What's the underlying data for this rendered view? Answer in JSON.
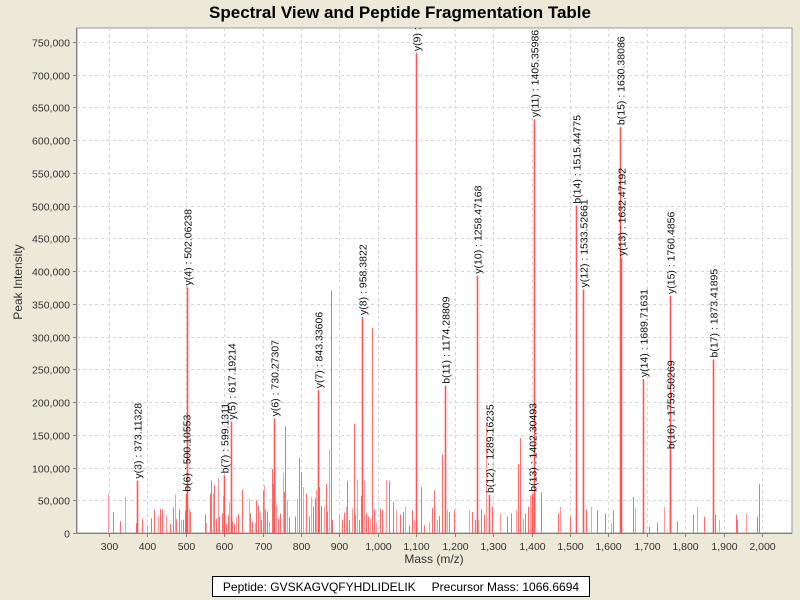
{
  "chart_data": {
    "type": "bar",
    "title": "Spectral View and Peptide Fragmentation Table",
    "xlabel": "Mass (m/z)",
    "ylabel": "Peak Intensity",
    "xlim": [
      217,
      2078
    ],
    "ylim": [
      0,
      772000
    ],
    "grid": true,
    "x_ticks": [
      300,
      400,
      500,
      600,
      700,
      800,
      900,
      1000,
      1100,
      1200,
      1300,
      1400,
      1500,
      1600,
      1700,
      1800,
      1900,
      2000
    ],
    "x_tick_labels": [
      "300",
      "400",
      "500",
      "600",
      "700",
      "800",
      "900",
      "1,000",
      "1,100",
      "1,200",
      "1,300",
      "1,400",
      "1,500",
      "1,600",
      "1,700",
      "1,800",
      "1,900",
      "2,000"
    ],
    "y_ticks": [
      0,
      50000,
      100000,
      150000,
      200000,
      250000,
      300000,
      350000,
      400000,
      450000,
      500000,
      550000,
      600000,
      650000,
      700000,
      750000
    ],
    "y_tick_labels": [
      "0",
      "50,000",
      "100,000",
      "150,000",
      "200,000",
      "250,000",
      "300,000",
      "350,000",
      "400,000",
      "450,000",
      "500,000",
      "550,000",
      "600,000",
      "650,000",
      "700,000",
      "750,000"
    ],
    "series_color": "#ff5555",
    "annotated_peaks": [
      {
        "mz": 373.11328,
        "intensity": 80000,
        "label": "y(3) : 373.11328"
      },
      {
        "mz": 500.10553,
        "intensity": 60000,
        "label": "b(6) : 500.10553"
      },
      {
        "mz": 502.06238,
        "intensity": 375000,
        "label": "y(4) : 502.06238"
      },
      {
        "mz": 599.1311,
        "intensity": 88000,
        "label": "b(7) : 599.1311"
      },
      {
        "mz": 617.19214,
        "intensity": 170000,
        "label": "y(5) : 617.19214"
      },
      {
        "mz": 730.27307,
        "intensity": 175000,
        "label": "y(6) : 730.27307"
      },
      {
        "mz": 843.33606,
        "intensity": 218000,
        "label": "y(7) : 843.33606"
      },
      {
        "mz": 958.3822,
        "intensity": 330000,
        "label": "y(8) : 958.3822"
      },
      {
        "mz": 1098.4,
        "intensity": 733000,
        "label": "y(9) :"
      },
      {
        "mz": 1174.28809,
        "intensity": 225000,
        "label": "b(11) : 1174.28809"
      },
      {
        "mz": 1258.47168,
        "intensity": 393000,
        "label": "y(10) : 1258.47168"
      },
      {
        "mz": 1289.16235,
        "intensity": 58000,
        "label": "b(12) : 1289.16235"
      },
      {
        "mz": 1402.30493,
        "intensity": 60000,
        "label": "b(13) : 1402.30493"
      },
      {
        "mz": 1405.35986,
        "intensity": 632000,
        "label": "y(11) : 1405.35986"
      },
      {
        "mz": 1515.44775,
        "intensity": 500000,
        "label": "b(14) : 1515.44775"
      },
      {
        "mz": 1533.52661,
        "intensity": 372000,
        "label": "y(12) : 1533.52661"
      },
      {
        "mz": 1630.38086,
        "intensity": 620000,
        "label": "b(15) : 1630.38086"
      },
      {
        "mz": 1632.47192,
        "intensity": 420000,
        "label": "y(13) : 1632.47192"
      },
      {
        "mz": 1689.71631,
        "intensity": 235000,
        "label": "y(14) : 1689.71631"
      },
      {
        "mz": 1759.50269,
        "intensity": 125000,
        "label": "b(16) : 1759.50269"
      },
      {
        "mz": 1760.4856,
        "intensity": 362000,
        "label": "y(15) : 1760.4856"
      },
      {
        "mz": 1873.41895,
        "intensity": 265000,
        "label": "b(17) : 1873.41895"
      }
    ],
    "other_peaks": [
      [
        298,
        60000
      ],
      [
        310,
        32000
      ],
      [
        328,
        18000
      ],
      [
        341,
        55000
      ],
      [
        370,
        15000
      ],
      [
        386,
        21000
      ],
      [
        398,
        12000
      ],
      [
        410,
        22000
      ],
      [
        418,
        36000
      ],
      [
        428,
        26000
      ],
      [
        432,
        37000
      ],
      [
        438,
        36000
      ],
      [
        448,
        27000
      ],
      [
        460,
        14000
      ],
      [
        467,
        39000
      ],
      [
        471,
        59000
      ],
      [
        475,
        21000
      ],
      [
        482,
        36000
      ],
      [
        488,
        20000
      ],
      [
        492,
        20000
      ],
      [
        498,
        34000
      ],
      [
        508,
        37000
      ],
      [
        512,
        32000
      ],
      [
        549,
        28000
      ],
      [
        552,
        15000
      ],
      [
        564,
        60000
      ],
      [
        566,
        80000
      ],
      [
        571,
        61000
      ],
      [
        574,
        73000
      ],
      [
        578,
        22000
      ],
      [
        583,
        84000
      ],
      [
        586,
        25000
      ],
      [
        594,
        30000
      ],
      [
        597,
        57000
      ],
      [
        604,
        14000
      ],
      [
        610,
        27000
      ],
      [
        613,
        47000
      ],
      [
        620,
        18000
      ],
      [
        625,
        14000
      ],
      [
        631,
        24000
      ],
      [
        637,
        29000
      ],
      [
        646,
        66000
      ],
      [
        665,
        52000
      ],
      [
        668,
        30000
      ],
      [
        672,
        17000
      ],
      [
        680,
        15000
      ],
      [
        684,
        50000
      ],
      [
        688,
        42000
      ],
      [
        693,
        31000
      ],
      [
        697,
        20000
      ],
      [
        700,
        65000
      ],
      [
        703,
        73000
      ],
      [
        706,
        36000
      ],
      [
        712,
        33000
      ],
      [
        718,
        18000
      ],
      [
        724,
        98000
      ],
      [
        728,
        75000
      ],
      [
        735,
        43000
      ],
      [
        741,
        22000
      ],
      [
        746,
        30000
      ],
      [
        752,
        92000
      ],
      [
        755,
        63000
      ],
      [
        758,
        163000
      ],
      [
        764,
        50000
      ],
      [
        770,
        24000
      ],
      [
        784,
        25000
      ],
      [
        790,
        52000
      ],
      [
        795,
        115000
      ],
      [
        801,
        93000
      ],
      [
        804,
        70000
      ],
      [
        813,
        60000
      ],
      [
        820,
        25000
      ],
      [
        826,
        55000
      ],
      [
        832,
        40000
      ],
      [
        836,
        53000
      ],
      [
        840,
        66000
      ],
      [
        848,
        70000
      ],
      [
        852,
        41000
      ],
      [
        860,
        40000
      ],
      [
        864,
        75000
      ],
      [
        868,
        32000
      ],
      [
        872,
        128000
      ],
      [
        877,
        370000
      ],
      [
        882,
        20000
      ],
      [
        900,
        28000
      ],
      [
        907,
        20000
      ],
      [
        913,
        31000
      ],
      [
        917,
        40000
      ],
      [
        920,
        80000
      ],
      [
        925,
        20000
      ],
      [
        932,
        37000
      ],
      [
        937,
        167000
      ],
      [
        941,
        28000
      ],
      [
        946,
        82000
      ],
      [
        951,
        20000
      ],
      [
        956,
        57000
      ],
      [
        963,
        80000
      ],
      [
        968,
        30000
      ],
      [
        975,
        25000
      ],
      [
        980,
        22000
      ],
      [
        986,
        313000
      ],
      [
        990,
        36000
      ],
      [
        996,
        15000
      ],
      [
        1005,
        37000
      ],
      [
        1012,
        35000
      ],
      [
        1020,
        81000
      ],
      [
        1030,
        80000
      ],
      [
        1040,
        47000
      ],
      [
        1048,
        36000
      ],
      [
        1058,
        28000
      ],
      [
        1066,
        32000
      ],
      [
        1072,
        40000
      ],
      [
        1082,
        12000
      ],
      [
        1088,
        35000
      ],
      [
        1094,
        20000
      ],
      [
        1112,
        70000
      ],
      [
        1120,
        12000
      ],
      [
        1132,
        16000
      ],
      [
        1141,
        38000
      ],
      [
        1147,
        65000
      ],
      [
        1155,
        20000
      ],
      [
        1158,
        26000
      ],
      [
        1168,
        120000
      ],
      [
        1181,
        35000
      ],
      [
        1186,
        32000
      ],
      [
        1198,
        35000
      ],
      [
        1237,
        35000
      ],
      [
        1244,
        32000
      ],
      [
        1252,
        20000
      ],
      [
        1262,
        20000
      ],
      [
        1268,
        36000
      ],
      [
        1276,
        28000
      ],
      [
        1282,
        170000
      ],
      [
        1290,
        30000
      ],
      [
        1298,
        40000
      ],
      [
        1318,
        30000
      ],
      [
        1335,
        25000
      ],
      [
        1346,
        30000
      ],
      [
        1360,
        35000
      ],
      [
        1365,
        105000
      ],
      [
        1371,
        145000
      ],
      [
        1378,
        22000
      ],
      [
        1384,
        30000
      ],
      [
        1390,
        40000
      ],
      [
        1396,
        57000
      ],
      [
        1425,
        62000
      ],
      [
        1468,
        30000
      ],
      [
        1473,
        40000
      ],
      [
        1500,
        25000
      ],
      [
        1542,
        36000
      ],
      [
        1555,
        40000
      ],
      [
        1570,
        35000
      ],
      [
        1590,
        30000
      ],
      [
        1606,
        15000
      ],
      [
        1612,
        35000
      ],
      [
        1665,
        55000
      ],
      [
        1670,
        38000
      ],
      [
        1706,
        10000
      ],
      [
        1726,
        15000
      ],
      [
        1746,
        40000
      ],
      [
        1778,
        18000
      ],
      [
        1820,
        28000
      ],
      [
        1832,
        40000
      ],
      [
        1848,
        25000
      ],
      [
        1878,
        28000
      ],
      [
        1888,
        20000
      ],
      [
        1932,
        28000
      ],
      [
        1936,
        20000
      ],
      [
        1957,
        30000
      ],
      [
        1986,
        25000
      ],
      [
        1992,
        75000
      ]
    ]
  },
  "legend": {
    "peptide": "Peptide: GVSKAGVQFYHDLIDELIK",
    "precursor": "Precursor Mass: 1066.6694"
  }
}
